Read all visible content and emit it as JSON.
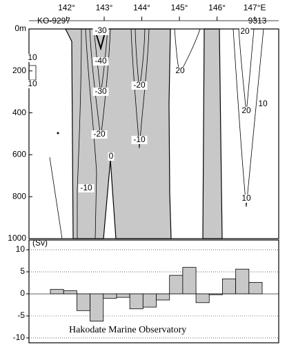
{
  "chart_data": [
    {
      "type": "contour",
      "station_labels": [
        "KO-9297",
        "9313"
      ],
      "xlim": [
        141,
        147.64
      ],
      "xticks": [
        {
          "value": 142,
          "label": "142°"
        },
        {
          "value": 143,
          "label": "143°"
        },
        {
          "value": 144,
          "label": "144°"
        },
        {
          "value": 145,
          "label": "145°"
        },
        {
          "value": 146,
          "label": "146°"
        },
        {
          "value": 147,
          "label": "147°E"
        }
      ],
      "ylim": [
        1000,
        0
      ],
      "yticks": [
        {
          "value": 0,
          "label": "0m"
        },
        200,
        400,
        600,
        800,
        1000
      ],
      "contour_labels": [
        "-30",
        "-40",
        "-30",
        "-20",
        "-10",
        "0",
        "-20",
        "-10",
        "20",
        "20",
        "20",
        "10",
        "10",
        "10",
        "10"
      ]
    },
    {
      "type": "bar",
      "y_label": "(Sv)",
      "annotation": "Hakodate Marine Observatory",
      "categories": [
        null,
        null,
        null,
        null,
        null,
        null,
        null,
        null,
        null,
        null,
        null,
        null,
        null,
        null,
        null,
        null
      ],
      "values": [
        1.0,
        0.7,
        -3.8,
        -6.2,
        -1.0,
        -0.8,
        -3.4,
        -3.0,
        -1.4,
        4.2,
        6.0,
        -2.0,
        -0.2,
        3.4,
        5.6,
        2.6
      ],
      "color": "#c8c8c8",
      "ylim": [
        -11.1,
        12.2
      ],
      "yticks": [
        -10,
        -5,
        0,
        5,
        10
      ],
      "grid": true
    }
  ]
}
